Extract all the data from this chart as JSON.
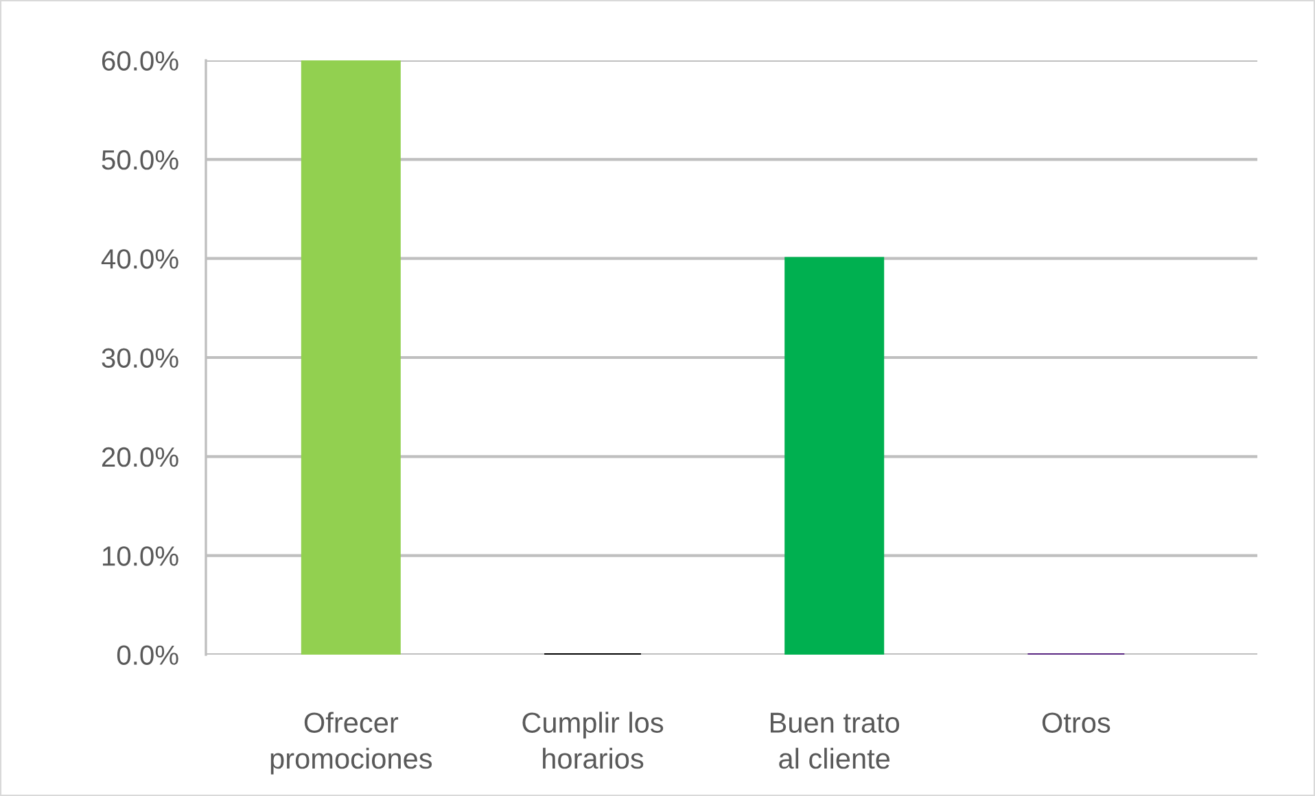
{
  "chart_data": {
    "type": "bar",
    "categories": [
      "Ofrecer\npromociones",
      "Cumplir los\nhorarios",
      "Buen trato\nal cliente",
      "Otros"
    ],
    "values": [
      60,
      0,
      40,
      0
    ],
    "colors": [
      "#92d050",
      "#000000",
      "#00b050",
      "#582580"
    ],
    "ylim": [
      0,
      60
    ],
    "yticks": [
      {
        "value": 0,
        "label": "0.0%"
      },
      {
        "value": 10,
        "label": "10.0%"
      },
      {
        "value": 20,
        "label": "20.0%"
      },
      {
        "value": 30,
        "label": "30.0%"
      },
      {
        "value": 40,
        "label": "40.0%"
      },
      {
        "value": 50,
        "label": "50.0%"
      },
      {
        "value": 60,
        "label": "60.0%"
      }
    ],
    "grid": "y"
  }
}
